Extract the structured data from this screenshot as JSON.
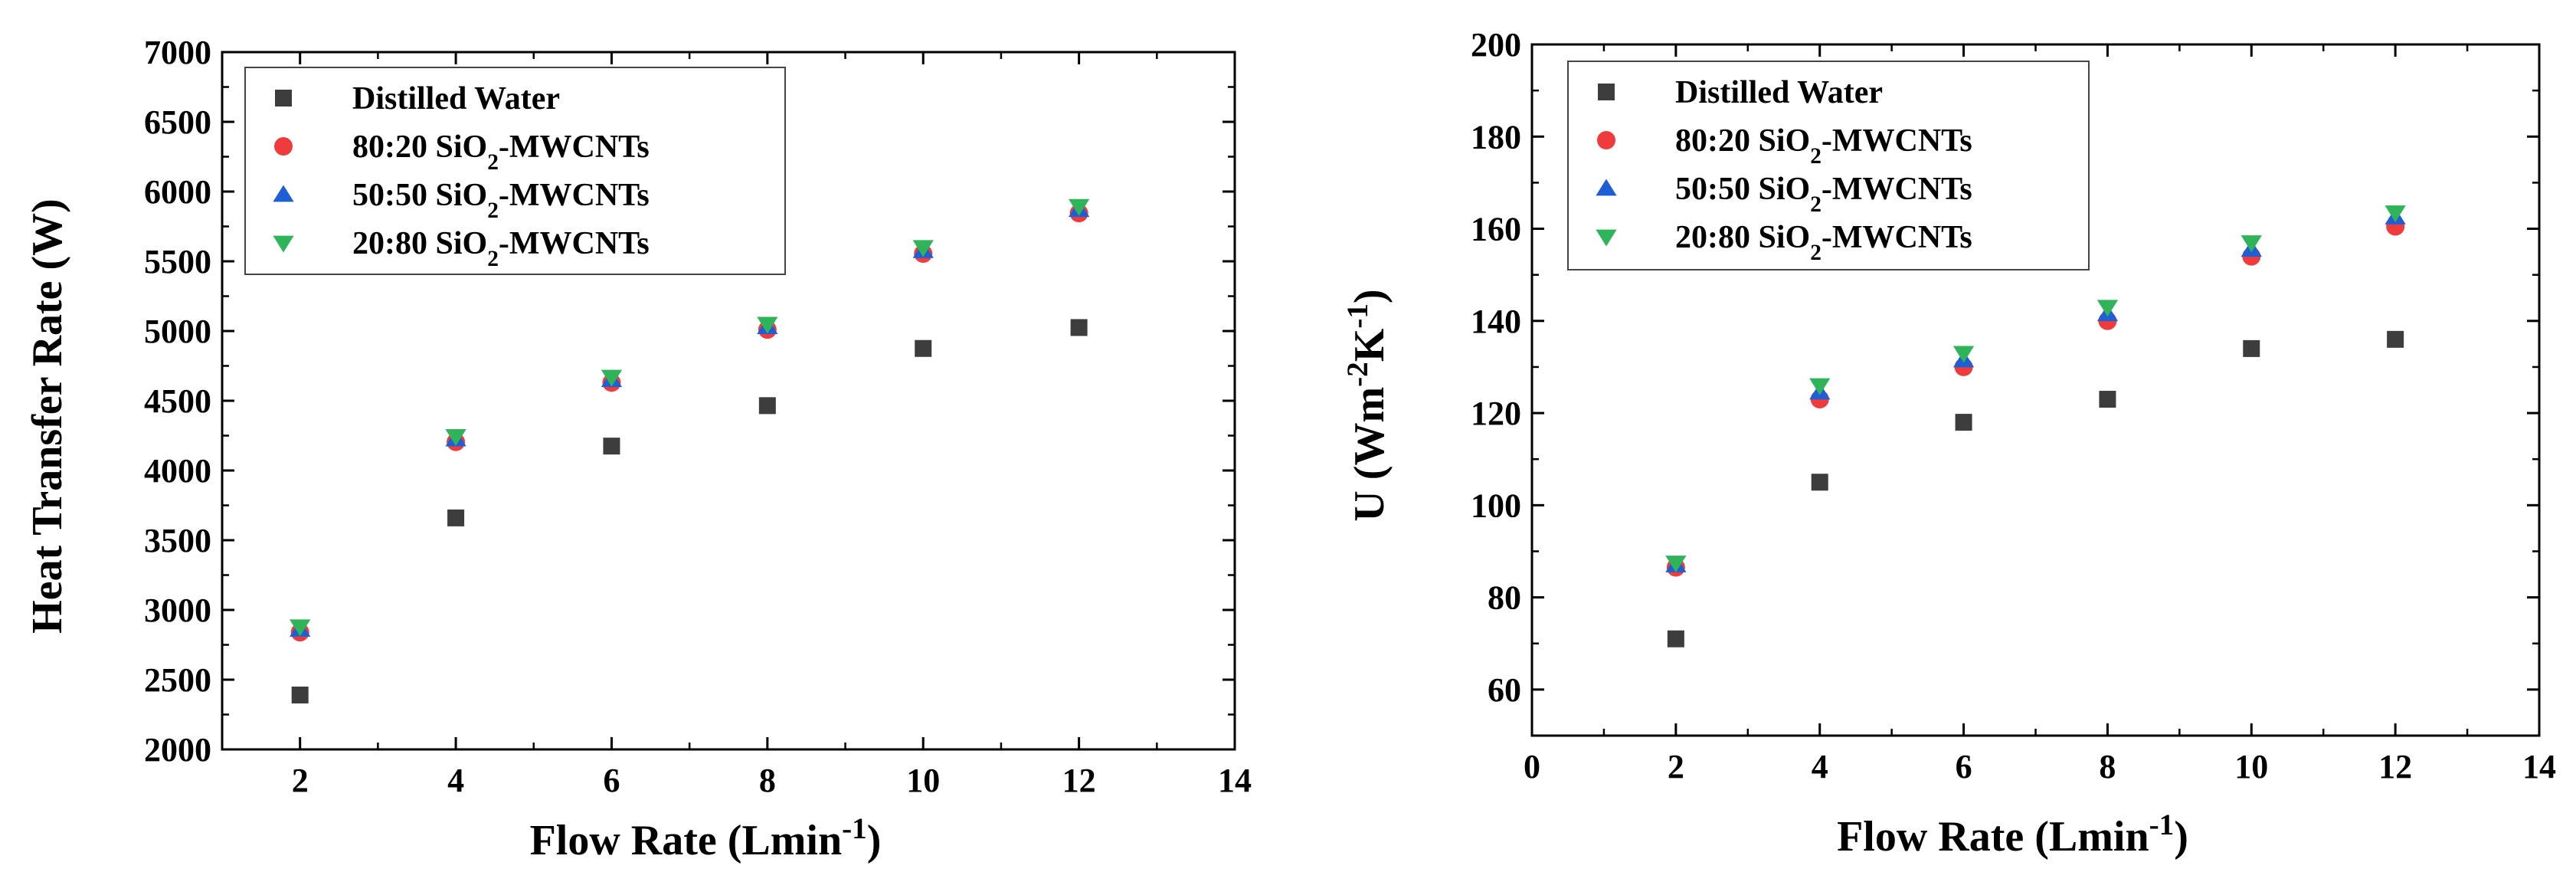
{
  "chart_data": [
    {
      "type": "scatter",
      "xlabel": "Flow Rate (Lmin⁻¹)",
      "ylabel": "Heat Transfer Rate (W)",
      "xlim": [
        1,
        14
      ],
      "ylim": [
        2000,
        7000
      ],
      "x_ticks": [
        2,
        4,
        6,
        8,
        10,
        12,
        14
      ],
      "y_ticks": [
        2000,
        2500,
        3000,
        3500,
        4000,
        4500,
        5000,
        5500,
        6000,
        6500,
        7000
      ],
      "grid": false,
      "legend_position": "top-left",
      "x": [
        2,
        4,
        6,
        8,
        10,
        12
      ],
      "series": [
        {
          "name": "Distilled Water",
          "marker": "square",
          "color": "#3d3d3d",
          "values": [
            2390,
            3660,
            4175,
            4465,
            4875,
            5025
          ]
        },
        {
          "name": "80:20 SiO₂-MWCNTs",
          "marker": "circle",
          "color": "#ef3b3b",
          "values": [
            2840,
            4205,
            4630,
            5010,
            5555,
            5845
          ]
        },
        {
          "name": "50:50 SiO₂-MWCNTs",
          "marker": "triangle-up",
          "color": "#1f5fd6",
          "values": [
            2860,
            4225,
            4650,
            5030,
            5575,
            5870
          ]
        },
        {
          "name": "20:80 SiO₂-MWCNTs",
          "marker": "triangle-down",
          "color": "#2fb45a",
          "values": [
            2880,
            4245,
            4670,
            5050,
            5600,
            5895
          ]
        }
      ]
    },
    {
      "type": "scatter",
      "xlabel": "Flow Rate (Lmin⁻¹)",
      "ylabel": "U (Wm⁻²K⁻¹)",
      "xlim": [
        0,
        14
      ],
      "ylim": [
        50,
        200
      ],
      "x_ticks": [
        0,
        2,
        4,
        6,
        8,
        10,
        12,
        14
      ],
      "y_ticks": [
        60,
        80,
        100,
        120,
        140,
        160,
        180,
        200
      ],
      "grid": false,
      "legend_position": "top-left",
      "x": [
        2,
        4,
        6,
        8,
        10,
        12
      ],
      "series": [
        {
          "name": "Distilled Water",
          "marker": "square",
          "color": "#3d3d3d",
          "values": [
            71,
            105,
            118,
            123,
            134,
            136
          ]
        },
        {
          "name": "80:20 SiO₂-MWCNTs",
          "marker": "circle",
          "color": "#ef3b3b",
          "values": [
            86.5,
            123,
            130,
            140,
            154,
            160.5
          ]
        },
        {
          "name": "50:50 SiO₂-MWCNTs",
          "marker": "triangle-up",
          "color": "#1f5fd6",
          "values": [
            87,
            124.5,
            131.5,
            141.5,
            155.5,
            162.5
          ]
        },
        {
          "name": "20:80 SiO₂-MWCNTs",
          "marker": "triangle-down",
          "color": "#2fb45a",
          "values": [
            87.5,
            126,
            133,
            143,
            157,
            163.5
          ]
        }
      ]
    }
  ]
}
